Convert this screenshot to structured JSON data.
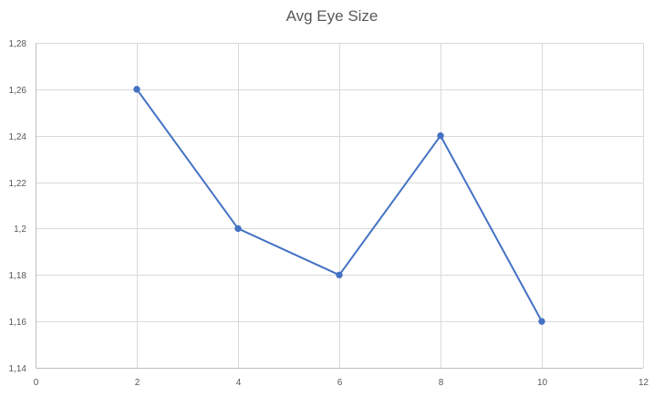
{
  "chart_data": {
    "type": "scatter",
    "title": "Avg Eye Size",
    "xlim": [
      0,
      12
    ],
    "ylim": [
      1.14,
      1.28
    ],
    "x_ticks": [
      0,
      2,
      4,
      6,
      8,
      10,
      12
    ],
    "y_ticks": [
      1.14,
      1.16,
      1.18,
      1.2,
      1.22,
      1.24,
      1.26,
      1.28
    ],
    "x_tick_labels": [
      "0",
      "2",
      "4",
      "6",
      "8",
      "10",
      "12"
    ],
    "y_tick_labels": [
      "1,14",
      "1,16",
      "1,18",
      "1,2",
      "1,22",
      "1,24",
      "1,26",
      "1,28"
    ],
    "grid": true,
    "legend": "none",
    "series": [
      {
        "color": "#4472c4",
        "marker": "circle",
        "connected": true,
        "x": [
          2,
          4,
          6,
          8,
          10
        ],
        "y": [
          1.26,
          1.2,
          1.18,
          1.24,
          1.16
        ]
      }
    ]
  }
}
